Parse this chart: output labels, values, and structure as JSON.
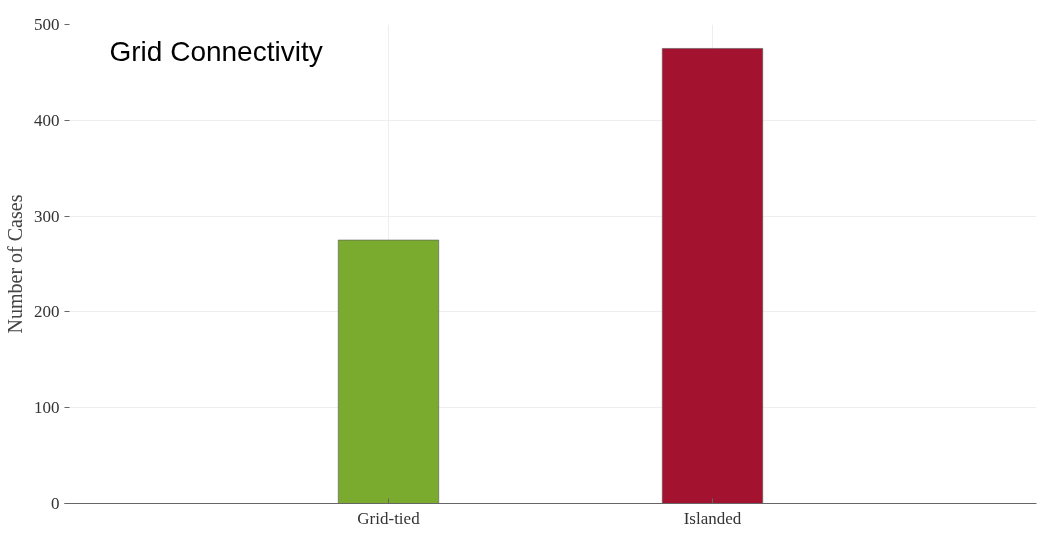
{
  "chart_data": {
    "type": "bar",
    "title": "Grid Connectivity",
    "ylabel": "Number of Cases",
    "categories": [
      "Grid-tied",
      "Islanded"
    ],
    "values": [
      275,
      475
    ],
    "colors": [
      "#7aab2f",
      "#a3132f"
    ],
    "ylim": [
      0,
      500
    ],
    "yticks": [
      0,
      100,
      200,
      300,
      400,
      500
    ],
    "grid": true
  }
}
